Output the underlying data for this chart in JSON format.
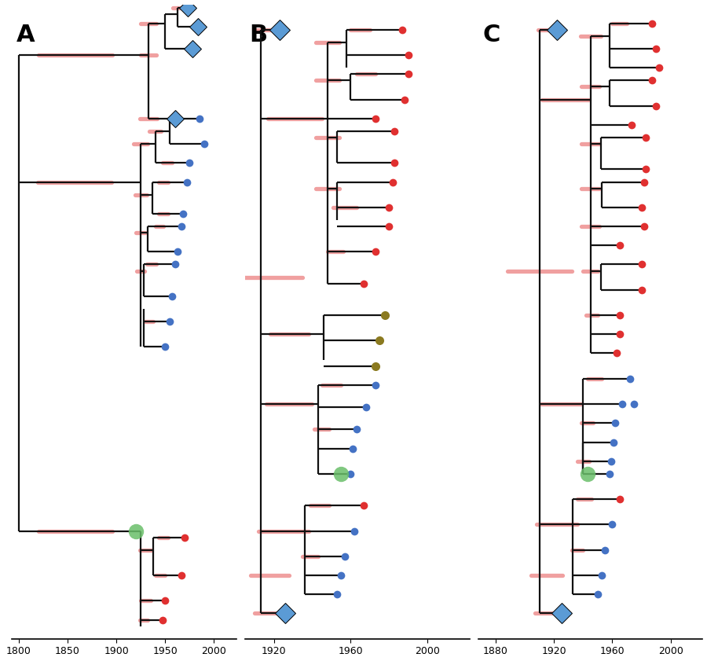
{
  "colors": {
    "red": "#e03030",
    "blue": "#4472c4",
    "green": "#6abf6a",
    "gold": "#8b7a20",
    "pink": "#f0a0a0",
    "lblue": "#5b9bd5",
    "black": "#111111",
    "white": "#ffffff"
  },
  "panelA": {
    "xlim": [
      1793,
      2023
    ],
    "xticks": [
      1800,
      1850,
      1900,
      1950,
      2000
    ]
  },
  "panelB": {
    "xlim": [
      1905,
      2022
    ],
    "xticks": [
      1920,
      1960,
      2000
    ]
  },
  "panelC": {
    "xlim": [
      1868,
      2022
    ],
    "xticks": [
      1880,
      1920,
      1960,
      2000
    ]
  }
}
